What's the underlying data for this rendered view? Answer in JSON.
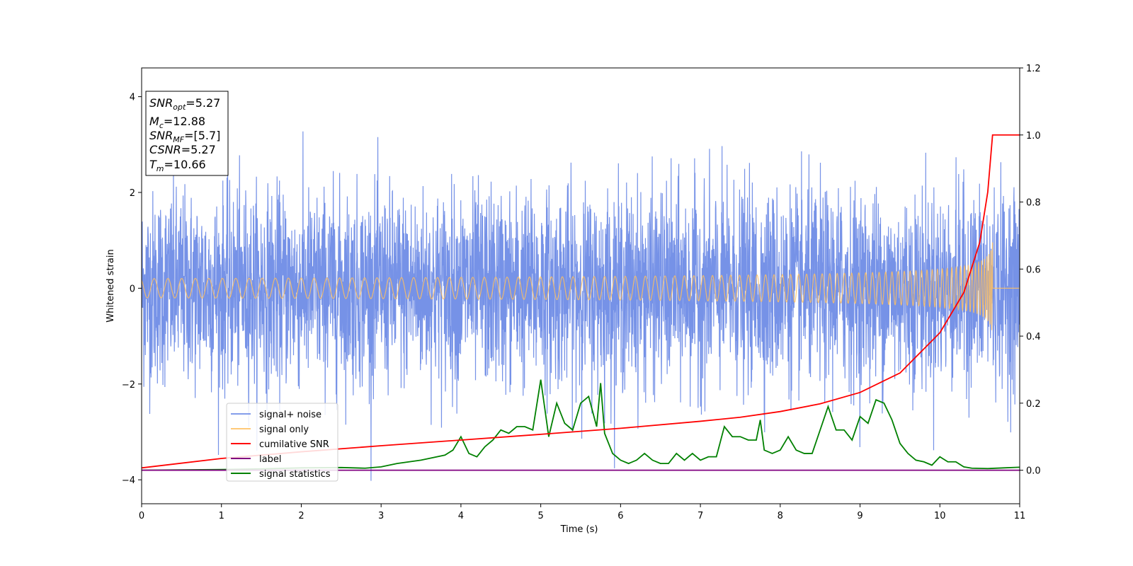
{
  "chart_data": {
    "type": "line",
    "xlabel": "Time (s)",
    "ylabel_left": "Whitened strain",
    "xlim": [
      0,
      11
    ],
    "ylim_left": [
      -4.5,
      4.6
    ],
    "ylim_right": [
      -0.1,
      1.2
    ],
    "xticks": [
      "0",
      "1",
      "2",
      "3",
      "4",
      "5",
      "6",
      "7",
      "8",
      "9",
      "10",
      "11"
    ],
    "yticks_left": [
      "−4",
      "−2",
      "0",
      "2",
      "4"
    ],
    "yticks_right": [
      "0.0",
      "0.2",
      "0.4",
      "0.6",
      "0.8",
      "1.0",
      "1.2"
    ],
    "grid": false,
    "legend_position": "lower-left",
    "info_box": {
      "snr_opt_sym": "SNR",
      "snr_opt_sub": "opt",
      "snr_opt_val": "=5.27",
      "mc_sym": "M",
      "mc_sub": "c",
      "mc_val": "=12.88",
      "snr_mf_sym": "SNR",
      "snr_mf_sub": "MF",
      "snr_mf_val": "=[5.7]",
      "csnr_sym": "CSNR",
      "csnr_val": "=5.27",
      "tm_sym": "T",
      "tm_sub": "m",
      "tm_val": "=10.66"
    },
    "series": [
      {
        "name": "signal+ noise",
        "color": "#6f8ce6",
        "axis": "left",
        "description_values": {
          "mean": 0,
          "std": 1,
          "t_start": 0,
          "t_end": 11
        }
      },
      {
        "name": "signal only",
        "color": "#ffbf60",
        "axis": "left",
        "merger_time": 10.66,
        "peak_amplitude": 0.97
      },
      {
        "name": "cumilative SNR",
        "color": "#ff0000",
        "axis": "right",
        "x": [
          0,
          1,
          2,
          3,
          4,
          5,
          6,
          7,
          7.5,
          8,
          8.5,
          9,
          9.5,
          10,
          10.3,
          10.5,
          10.6,
          10.66,
          11
        ],
        "y": [
          0.007,
          0.035,
          0.055,
          0.073,
          0.09,
          0.107,
          0.125,
          0.146,
          0.158,
          0.175,
          0.198,
          0.232,
          0.29,
          0.41,
          0.53,
          0.68,
          0.83,
          1.0,
          1.0
        ]
      },
      {
        "name": "label",
        "color": "#800080",
        "axis": "right",
        "x": [
          0,
          11
        ],
        "y": [
          0,
          0
        ]
      },
      {
        "name": "signal statistics",
        "color": "#008000",
        "axis": "right",
        "x": [
          0,
          0.5,
          1,
          1.5,
          2,
          2.5,
          2.8,
          3.0,
          3.2,
          3.5,
          3.8,
          3.9,
          4.0,
          4.1,
          4.2,
          4.3,
          4.4,
          4.5,
          4.6,
          4.7,
          4.8,
          4.9,
          5.0,
          5.1,
          5.2,
          5.3,
          5.4,
          5.5,
          5.6,
          5.7,
          5.75,
          5.8,
          5.9,
          6.0,
          6.1,
          6.2,
          6.3,
          6.4,
          6.5,
          6.6,
          6.7,
          6.8,
          6.9,
          7.0,
          7.1,
          7.2,
          7.3,
          7.4,
          7.5,
          7.6,
          7.7,
          7.75,
          7.8,
          7.9,
          8.0,
          8.1,
          8.2,
          8.3,
          8.4,
          8.5,
          8.6,
          8.7,
          8.8,
          8.9,
          9.0,
          9.1,
          9.2,
          9.3,
          9.4,
          9.5,
          9.6,
          9.7,
          9.8,
          9.9,
          10.0,
          10.1,
          10.2,
          10.3,
          10.4,
          10.6,
          10.8,
          11
        ],
        "y": [
          0.0,
          0.001,
          0.002,
          0.004,
          0.007,
          0.008,
          0.006,
          0.01,
          0.02,
          0.03,
          0.045,
          0.06,
          0.1,
          0.05,
          0.04,
          0.07,
          0.09,
          0.12,
          0.11,
          0.13,
          0.13,
          0.12,
          0.27,
          0.1,
          0.2,
          0.14,
          0.12,
          0.2,
          0.22,
          0.13,
          0.26,
          0.11,
          0.05,
          0.03,
          0.02,
          0.03,
          0.05,
          0.03,
          0.02,
          0.02,
          0.05,
          0.03,
          0.05,
          0.03,
          0.04,
          0.04,
          0.13,
          0.1,
          0.1,
          0.09,
          0.09,
          0.15,
          0.06,
          0.05,
          0.06,
          0.1,
          0.06,
          0.05,
          0.05,
          0.12,
          0.19,
          0.12,
          0.12,
          0.09,
          0.16,
          0.14,
          0.21,
          0.2,
          0.15,
          0.08,
          0.05,
          0.03,
          0.025,
          0.015,
          0.04,
          0.025,
          0.025,
          0.01,
          0.006,
          0.005,
          0.007,
          0.009
        ]
      }
    ]
  }
}
